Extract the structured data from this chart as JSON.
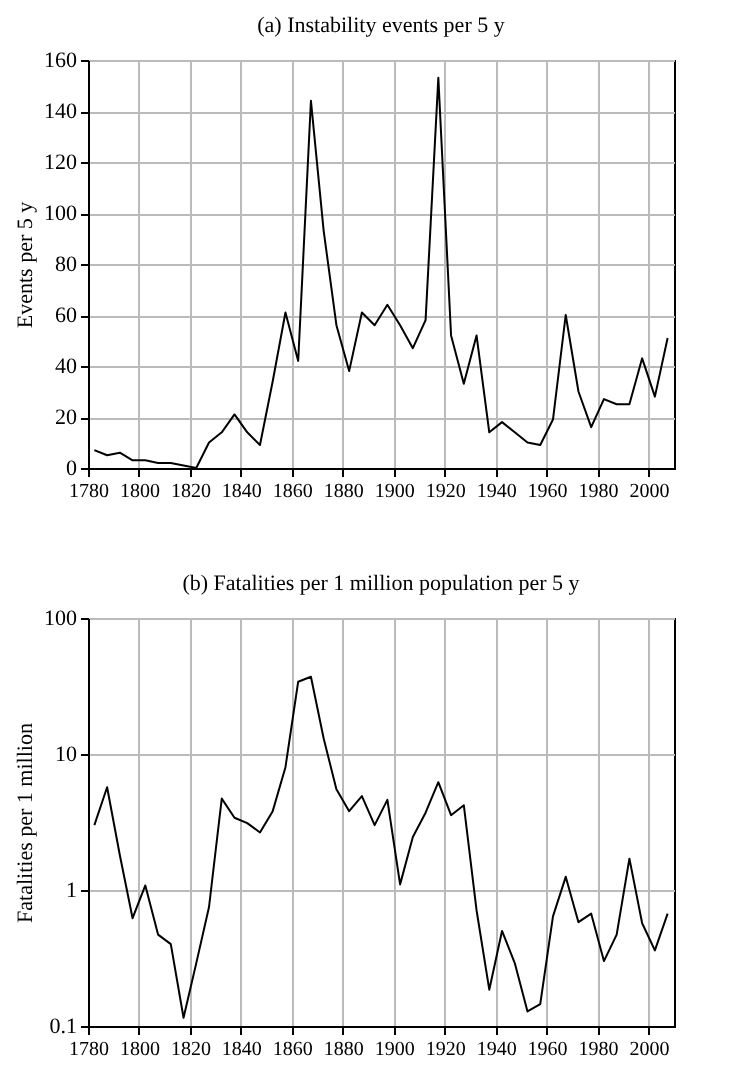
{
  "chart_data": [
    {
      "type": "line",
      "title": "(a) Instability events per 5 y",
      "ylabel": "Events per 5 y",
      "x": [
        1782.5,
        1787.5,
        1792.5,
        1797.5,
        1802.5,
        1807.5,
        1812.5,
        1817.5,
        1822.5,
        1827.5,
        1832.5,
        1837.5,
        1842.5,
        1847.5,
        1852.5,
        1857.5,
        1862.5,
        1867.5,
        1872.5,
        1877.5,
        1882.5,
        1887.5,
        1892.5,
        1897.5,
        1902.5,
        1907.5,
        1912.5,
        1917.5,
        1922.5,
        1927.5,
        1932.5,
        1937.5,
        1942.5,
        1947.5,
        1952.5,
        1957.5,
        1962.5,
        1967.5,
        1972.5,
        1977.5,
        1982.5,
        1987.5,
        1992.5,
        1997.5,
        2002.5,
        2007.5
      ],
      "series": [
        {
          "color": "#000000",
          "values": [
            7,
            5,
            6,
            3,
            3,
            2,
            2,
            1,
            0,
            10,
            14,
            21,
            14,
            9,
            34,
            61,
            42,
            144,
            93,
            56,
            38,
            61,
            56,
            64,
            56,
            47,
            58,
            153,
            52,
            33,
            52,
            14,
            18,
            14,
            10,
            9,
            19,
            60,
            30,
            16,
            27,
            25,
            25,
            43,
            28,
            51
          ]
        }
      ],
      "xlim": [
        1780,
        2010
      ],
      "xticks": [
        1780,
        1800,
        1820,
        1840,
        1860,
        1880,
        1900,
        1920,
        1940,
        1960,
        1980,
        2000
      ],
      "ylim": [
        0,
        160
      ],
      "yticks": [
        0,
        20,
        40,
        60,
        80,
        100,
        120,
        140,
        160
      ],
      "grid": true,
      "marker": "none",
      "line_style": "solid"
    },
    {
      "type": "line",
      "title": "(b) Fatalities per 1 million population per 5 y",
      "ylabel": "Fatalities per 1 million",
      "x": [
        1782.5,
        1787.5,
        1792.5,
        1797.5,
        1802.5,
        1807.5,
        1812.5,
        1817.5,
        1822.5,
        1827.5,
        1832.5,
        1837.5,
        1842.5,
        1847.5,
        1852.5,
        1857.5,
        1862.5,
        1867.5,
        1872.5,
        1877.5,
        1882.5,
        1887.5,
        1892.5,
        1897.5,
        1902.5,
        1907.5,
        1912.5,
        1917.5,
        1922.5,
        1927.5,
        1932.5,
        1937.5,
        1942.5,
        1947.5,
        1952.5,
        1957.5,
        1962.5,
        1967.5,
        1972.5,
        1977.5,
        1982.5,
        1987.5,
        1992.5,
        1997.5,
        2002.5,
        2007.5
      ],
      "series": [
        {
          "color": "#000000",
          "values": [
            3.0,
            5.7,
            1.8,
            0.62,
            1.08,
            0.47,
            0.4,
            0.115,
            0.29,
            0.75,
            4.7,
            3.4,
            3.1,
            2.65,
            3.8,
            8,
            34,
            37,
            13,
            5.5,
            3.8,
            4.9,
            3.0,
            4.6,
            1.1,
            2.45,
            3.7,
            6.2,
            3.55,
            4.2,
            0.71,
            0.185,
            0.5,
            0.29,
            0.128,
            0.145,
            0.64,
            1.25,
            0.58,
            0.67,
            0.3,
            0.47,
            1.7,
            0.57,
            0.36,
            0.67
          ]
        }
      ],
      "xlim": [
        1780,
        2010
      ],
      "xticks": [
        1780,
        1800,
        1820,
        1840,
        1860,
        1880,
        1900,
        1920,
        1940,
        1960,
        1980,
        2000
      ],
      "ylim": [
        0.1,
        100
      ],
      "yticks": [
        0.1,
        1,
        10,
        100
      ],
      "log": "y",
      "grid": true,
      "marker": "none",
      "line_style": "solid"
    }
  ]
}
